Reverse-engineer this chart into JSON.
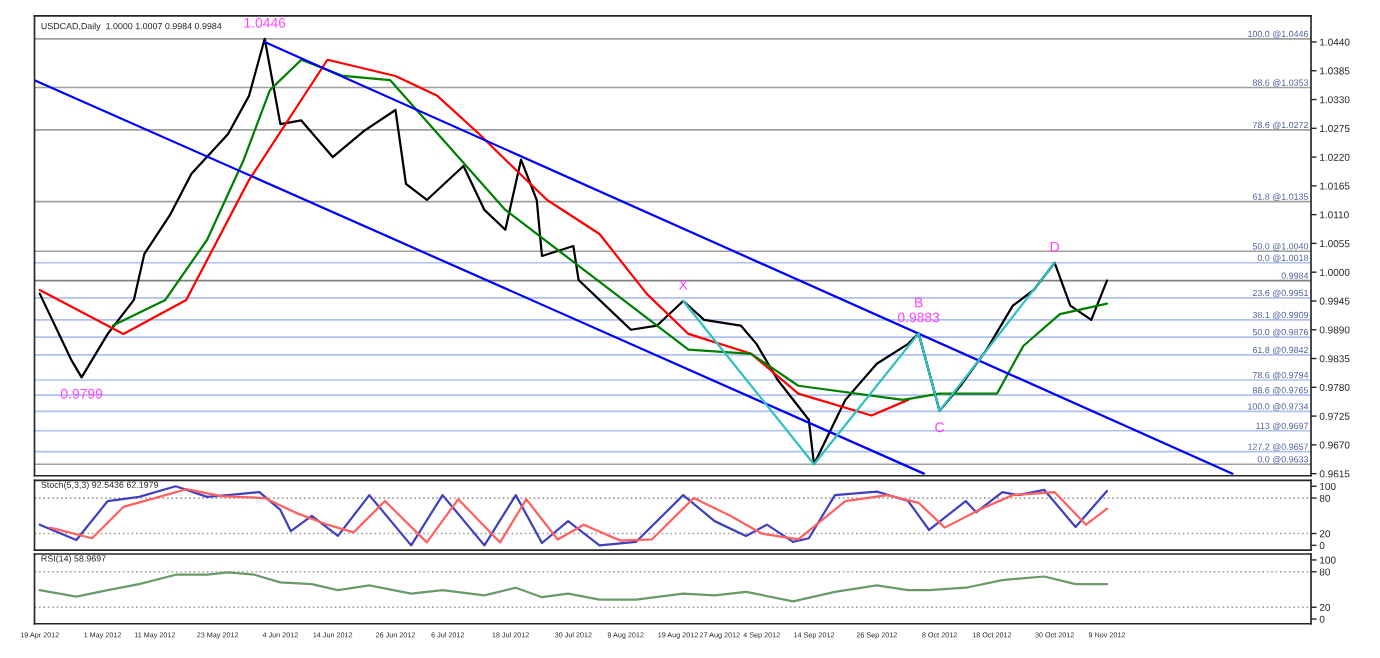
{
  "chart_data": [
    {
      "type": "line",
      "title": "USDCAD,Daily  1.0000 1.0007 0.9984 0.9984",
      "xlim": [
        "2012-04-18",
        "2012-12-18"
      ],
      "ylim": [
        0.9611,
        1.049
      ],
      "yticks": [
        {
          "value": 1.044,
          "label": "1.0440"
        },
        {
          "value": 1.0385,
          "label": "1.0385"
        },
        {
          "value": 1.033,
          "label": "1.0330"
        },
        {
          "value": 1.0275,
          "label": "1.0275"
        },
        {
          "value": 1.022,
          "label": "1.0220"
        },
        {
          "value": 1.0165,
          "label": "1.0165"
        },
        {
          "value": 1.011,
          "label": "1.0110"
        },
        {
          "value": 1.0055,
          "label": "1.0055"
        },
        {
          "value": 1.0,
          "label": "1.0000"
        },
        {
          "value": 0.9945,
          "label": "0.9945"
        },
        {
          "value": 0.989,
          "label": "0.9890"
        },
        {
          "value": 0.9835,
          "label": "0.9835"
        },
        {
          "value": 0.978,
          "label": "0.9780"
        },
        {
          "value": 0.9725,
          "label": "0.9725"
        },
        {
          "value": 0.967,
          "label": "0.9670"
        },
        {
          "value": 0.9615,
          "label": "0.9615"
        }
      ],
      "tick_labels": "y",
      "grid": false,
      "series": [
        {
          "color": "#000000",
          "x": [
            "2012-04-19",
            "2012-04-25",
            "2012-04-27",
            "2012-05-02",
            "2012-05-07",
            "2012-05-09",
            "2012-05-14",
            "2012-05-18",
            "2012-05-25",
            "2012-05-29",
            "2012-06-01",
            "2012-06-04",
            "2012-06-08",
            "2012-06-14",
            "2012-06-20",
            "2012-06-26",
            "2012-06-28",
            "2012-07-02",
            "2012-07-09",
            "2012-07-13",
            "2012-07-17",
            "2012-07-20",
            "2012-07-23",
            "2012-07-24",
            "2012-07-30",
            "2012-07-31",
            "2012-08-06",
            "2012-08-10",
            "2012-08-15",
            "2012-08-20",
            "2012-08-24",
            "2012-08-31",
            "2012-09-03",
            "2012-09-07",
            "2012-09-13",
            "2012-09-14",
            "2012-09-20",
            "2012-09-26",
            "2012-10-02",
            "2012-10-04",
            "2012-10-08",
            "2012-10-12",
            "2012-10-17",
            "2012-10-22",
            "2012-10-26",
            "2012-10-30",
            "2012-11-02",
            "2012-11-06",
            "2012-11-09"
          ],
          "values": [
            0.9959,
            0.9833,
            0.9799,
            0.9882,
            0.9947,
            1.0035,
            1.0111,
            1.0188,
            1.0264,
            1.0337,
            1.0446,
            1.0283,
            1.029,
            1.022,
            1.027,
            1.031,
            1.0169,
            1.0138,
            1.0203,
            1.0119,
            1.0081,
            1.0215,
            1.0138,
            1.0031,
            1.005,
            0.9985,
            0.9928,
            0.989,
            0.9898,
            0.9945,
            0.9909,
            0.9898,
            0.9863,
            0.9795,
            0.9718,
            0.9633,
            0.9756,
            0.9825,
            0.9863,
            0.9883,
            0.9735,
            0.9783,
            0.9852,
            0.9936,
            0.9966,
            1.0018,
            0.9936,
            0.9909,
            0.9984
          ]
        },
        {
          "color": "#ff0000",
          "x": [
            "2012-04-19",
            "2012-05-05",
            "2012-05-17",
            "2012-05-29",
            "2012-06-13",
            "2012-06-26",
            "2012-07-04",
            "2012-07-12",
            "2012-07-17",
            "2012-07-25",
            "2012-08-04",
            "2012-08-13",
            "2012-08-21",
            "2012-09-02",
            "2012-09-11",
            "2012-09-25",
            "2012-10-02"
          ],
          "values": [
            0.9966,
            0.9882,
            0.9947,
            1.0176,
            1.0406,
            1.0375,
            1.0337,
            1.0264,
            1.0215,
            1.0138,
            1.0073,
            0.9959,
            0.9882,
            0.9844,
            0.9768,
            0.9726,
            0.9756
          ]
        },
        {
          "color": "#008000",
          "x": [
            "2012-05-03",
            "2012-05-13",
            "2012-05-21",
            "2012-05-28",
            "2012-06-02",
            "2012-06-08",
            "2012-06-16",
            "2012-06-25",
            "2012-07-17",
            "2012-08-21",
            "2012-09-02",
            "2012-09-11",
            "2012-10-01",
            "2012-10-08",
            "2012-10-19",
            "2012-10-24",
            "2012-10-31",
            "2012-11-09"
          ],
          "values": [
            0.9898,
            0.9947,
            1.0062,
            1.0215,
            1.0348,
            1.0406,
            1.0375,
            1.0367,
            1.0119,
            0.9852,
            0.9844,
            0.9783,
            0.9756,
            0.9768,
            0.9768,
            0.9859,
            0.992,
            0.994
          ]
        },
        {
          "color": "#0000ff",
          "x": [
            "2012-06-01",
            "2012-12-03"
          ],
          "values": [
            1.044,
            0.9615
          ]
        },
        {
          "color": "#0000ff",
          "x": [
            "2012-04-18",
            "2012-10-05"
          ],
          "values": [
            1.0367,
            0.9615
          ]
        },
        {
          "color": "#30c0c0",
          "x": [
            "2012-08-20",
            "2012-09-14",
            "2012-10-04",
            "2012-10-08",
            "2012-10-30"
          ],
          "values": [
            0.9945,
            0.9633,
            0.9883,
            0.9735,
            1.0018
          ]
        }
      ],
      "ref_lines": [
        {
          "axis": "y",
          "value": 1.0446,
          "label": "100.0 @1.0446",
          "color": "#a0a0a0"
        },
        {
          "axis": "y",
          "value": 1.0353,
          "label": "88.6 @1.0353",
          "color": "#a0a0a0"
        },
        {
          "axis": "y",
          "value": 1.0272,
          "label": "78.6 @1.0272",
          "color": "#a0a0a0"
        },
        {
          "axis": "y",
          "value": 1.0135,
          "label": "61.8 @1.0135",
          "color": "#a0a0a0"
        },
        {
          "axis": "y",
          "value": 1.004,
          "label": "50.0 @1.0040",
          "color": "#a0a0a0"
        },
        {
          "axis": "y",
          "value": 0.9633,
          "label": "0.0 @0.9633",
          "color": "#a0a0a0"
        },
        {
          "axis": "y",
          "value": 1.0018,
          "label": "0.0 @1.0018",
          "color": "#b0c0f0"
        },
        {
          "axis": "y",
          "value": 0.9951,
          "label": "23.6 @0.9951",
          "color": "#b0c0f0"
        },
        {
          "axis": "y",
          "value": 0.9909,
          "label": "38.1 @0.9909",
          "color": "#b0c0f0"
        },
        {
          "axis": "y",
          "value": 0.9876,
          "label": "50.0 @0.9876",
          "color": "#b0c0f0"
        },
        {
          "axis": "y",
          "value": 0.9842,
          "label": "61.8 @0.9842",
          "color": "#b0c0f0"
        },
        {
          "axis": "y",
          "value": 0.9794,
          "label": "78.6 @0.9794",
          "color": "#b0c0f0"
        },
        {
          "axis": "y",
          "value": 0.9765,
          "label": "88.6 @0.9765",
          "color": "#b0c0f0"
        },
        {
          "axis": "y",
          "value": 0.9734,
          "label": "100.0 @0.9734",
          "color": "#b0c0f0"
        },
        {
          "axis": "y",
          "value": 0.9697,
          "label": "113 @0.9697",
          "color": "#b0c0f0"
        },
        {
          "axis": "y",
          "value": 0.9657,
          "label": "127.2 @0.9657",
          "color": "#b0c0f0"
        },
        {
          "axis": "y",
          "value": 0.9984,
          "label": "0.9984",
          "color": "#808080"
        }
      ],
      "annotations": [
        {
          "text": "1.0446",
          "x": "2012-06-01",
          "y": 1.0446
        },
        {
          "text": "0.9799",
          "x": "2012-04-27",
          "y": 0.9799
        },
        {
          "text": "X",
          "x": "2012-08-20",
          "y": 0.9945
        },
        {
          "text": "B\n0.9883",
          "x": "2012-10-04",
          "y": 0.9883
        },
        {
          "text": "C",
          "x": "2012-10-08",
          "y": 0.9735
        },
        {
          "text": "D",
          "x": "2012-10-30",
          "y": 1.0018
        }
      ]
    },
    {
      "type": "line",
      "title": "Stoch(5,3,3) 92.5436 62.1979",
      "xlim": [
        "2012-04-18",
        "2012-12-18"
      ],
      "ylim": [
        -8,
        110
      ],
      "yticks": [
        0,
        20,
        80,
        100
      ],
      "tick_labels": "y",
      "grid": false,
      "ref_lines": [
        {
          "axis": "y",
          "value": 20,
          "color": "#a0a0a0",
          "line_style": "dotted"
        },
        {
          "axis": "y",
          "value": 80,
          "color": "#a0a0a0",
          "line_style": "dotted"
        }
      ],
      "series": [
        {
          "color": "#4040c0",
          "x": [
            "2012-04-19",
            "2012-04-26",
            "2012-05-02",
            "2012-05-08",
            "2012-05-15",
            "2012-05-21",
            "2012-05-25",
            "2012-05-31",
            "2012-06-04",
            "2012-06-06",
            "2012-06-10",
            "2012-06-15",
            "2012-06-21",
            "2012-06-29",
            "2012-07-05",
            "2012-07-13",
            "2012-07-19",
            "2012-07-24",
            "2012-07-29",
            "2012-08-04",
            "2012-08-11",
            "2012-08-20",
            "2012-08-26",
            "2012-09-01",
            "2012-09-05",
            "2012-09-10",
            "2012-09-13",
            "2012-09-18",
            "2012-09-26",
            "2012-10-02",
            "2012-10-06",
            "2012-10-13",
            "2012-10-15",
            "2012-10-20",
            "2012-10-23",
            "2012-10-28",
            "2012-11-03",
            "2012-11-09"
          ],
          "values": [
            35,
            9,
            75,
            82,
            100,
            82,
            85,
            90,
            60,
            24,
            50,
            16,
            85,
            0,
            85,
            0,
            85,
            4,
            41,
            0,
            6,
            85,
            41,
            16,
            35,
            6,
            12,
            85,
            91,
            75,
            26,
            75,
            56,
            90,
            85,
            94,
            31,
            92
          ]
        },
        {
          "color": "#ff6060",
          "x": [
            "2012-04-21",
            "2012-04-29",
            "2012-05-05",
            "2012-05-11",
            "2012-05-17",
            "2012-05-24",
            "2012-06-01",
            "2012-06-07",
            "2012-06-13",
            "2012-06-18",
            "2012-06-24",
            "2012-07-02",
            "2012-07-08",
            "2012-07-16",
            "2012-07-21",
            "2012-07-27",
            "2012-08-01",
            "2012-08-08",
            "2012-08-14",
            "2012-08-22",
            "2012-08-29",
            "2012-09-04",
            "2012-09-11",
            "2012-09-20",
            "2012-09-28",
            "2012-10-04",
            "2012-10-09",
            "2012-10-16",
            "2012-10-22",
            "2012-10-30",
            "2012-11-05",
            "2012-11-09"
          ],
          "values": [
            30,
            12,
            65,
            80,
            95,
            83,
            80,
            55,
            35,
            22,
            75,
            5,
            78,
            5,
            78,
            10,
            35,
            8,
            10,
            80,
            50,
            20,
            10,
            75,
            85,
            72,
            30,
            62,
            85,
            90,
            35,
            62
          ]
        }
      ]
    },
    {
      "type": "line",
      "title": "RSI(14) 58.9697",
      "xlim": [
        "2012-04-18",
        "2012-12-18"
      ],
      "ylim": [
        -8,
        110
      ],
      "yticks": [
        0,
        20,
        80,
        100
      ],
      "grid": false,
      "xticks": [
        {
          "value": "2012-04-19",
          "label": "19 Apr 2012"
        },
        {
          "value": "2012-05-01",
          "label": "1 May 2012"
        },
        {
          "value": "2012-05-11",
          "label": "11 May 2012"
        },
        {
          "value": "2012-05-23",
          "label": "23 May 2012"
        },
        {
          "value": "2012-06-04",
          "label": "4 Jun 2012"
        },
        {
          "value": "2012-06-14",
          "label": "14 Jun 2012"
        },
        {
          "value": "2012-06-26",
          "label": "26 Jun 2012"
        },
        {
          "value": "2012-07-06",
          "label": "6 Jul 2012"
        },
        {
          "value": "2012-07-18",
          "label": "18 Jul 2012"
        },
        {
          "value": "2012-07-30",
          "label": "30 Jul 2012"
        },
        {
          "value": "2012-08-09",
          "label": "9 Aug 2012"
        },
        {
          "value": "2012-08-19",
          "label": "19 Aug 2012"
        },
        {
          "value": "2012-08-27",
          "label": "27 Aug 2012"
        },
        {
          "value": "2012-09-04",
          "label": "4 Sep 2012"
        },
        {
          "value": "2012-09-14",
          "label": "14 Sep 2012"
        },
        {
          "value": "2012-09-26",
          "label": "26 Sep 2012"
        },
        {
          "value": "2012-10-08",
          "label": "8 Oct 2012"
        },
        {
          "value": "2012-10-18",
          "label": "18 Oct 2012"
        },
        {
          "value": "2012-10-30",
          "label": "30 Oct 2012"
        },
        {
          "value": "2012-11-09",
          "label": "9 Nov 2012"
        }
      ],
      "ref_lines": [
        {
          "axis": "y",
          "value": 20,
          "color": "#a0a0a0",
          "line_style": "dotted"
        },
        {
          "axis": "y",
          "value": 80,
          "color": "#a0a0a0",
          "line_style": "dotted"
        }
      ],
      "series": [
        {
          "color": "#6a9a6a",
          "x": [
            "2012-04-19",
            "2012-04-26",
            "2012-05-02",
            "2012-05-08",
            "2012-05-15",
            "2012-05-21",
            "2012-05-25",
            "2012-05-30",
            "2012-06-04",
            "2012-06-10",
            "2012-06-15",
            "2012-06-21",
            "2012-06-29",
            "2012-07-05",
            "2012-07-13",
            "2012-07-19",
            "2012-07-24",
            "2012-07-29",
            "2012-08-04",
            "2012-08-11",
            "2012-08-20",
            "2012-08-26",
            "2012-09-01",
            "2012-09-10",
            "2012-09-18",
            "2012-09-26",
            "2012-10-02",
            "2012-10-06",
            "2012-10-13",
            "2012-10-20",
            "2012-10-28",
            "2012-11-03",
            "2012-11-09"
          ],
          "values": [
            49,
            38,
            49,
            59,
            75,
            75,
            79,
            75,
            62,
            59,
            49,
            57,
            43,
            49,
            40,
            53,
            37,
            43,
            33,
            33,
            43,
            40,
            46,
            30,
            46,
            57,
            49,
            49,
            53,
            66,
            72,
            59,
            59
          ]
        }
      ]
    }
  ]
}
